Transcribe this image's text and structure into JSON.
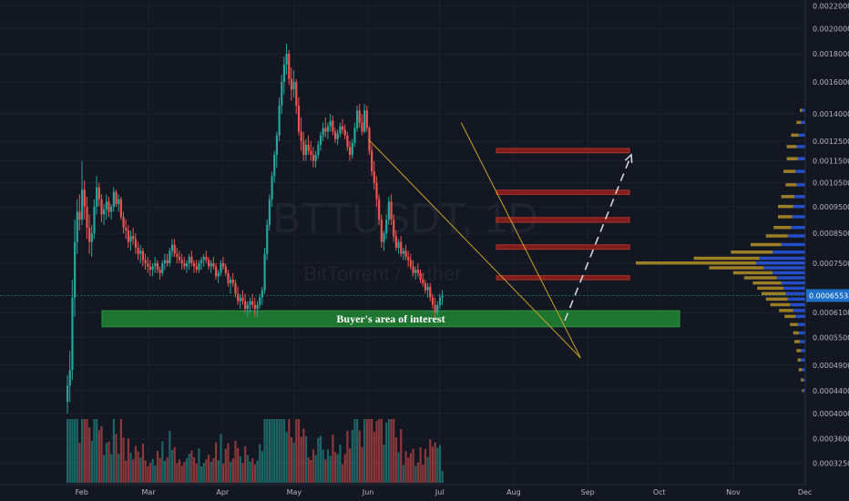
{
  "chart_data": {
    "type": "candlestick",
    "title": "",
    "watermark": {
      "symbol": "BTTUSDT, 1D",
      "name": "BitTorrent / Tether"
    },
    "xlabel": "",
    "ylabel": "",
    "x_ticks": [
      "Feb",
      "Mar",
      "Apr",
      "May",
      "Jun",
      "Jul",
      "Aug",
      "Sep",
      "Oct",
      "Nov",
      "Dec"
    ],
    "y_ticks": [
      "0.0022000",
      "0.0020000",
      "0.0018000",
      "0.0016000",
      "0.0014000",
      "0.0012500",
      "0.0011500",
      "0.0010500",
      "0.0009500",
      "0.0008500",
      "0.0007500",
      "0.0006100",
      "0.0005500",
      "0.0004900",
      "0.0004400",
      "0.0004000",
      "0.0003600",
      "0.0003250"
    ],
    "last_price": "0.0006553",
    "ylim": [
      0.00031,
      0.00222
    ],
    "y_scale": "log",
    "colors": {
      "up": "#26a69a",
      "down": "#ef5350",
      "background": "#131722",
      "zone": "#1e7d32",
      "resistance": "#8b1d1d",
      "trendline": "#c9a227",
      "projection": "#d1d4dc",
      "profile_up": "#2962ff",
      "profile_down": "#c9a227"
    },
    "support_zone": {
      "label": "Buyer's area of interest",
      "price_low": 0.000575,
      "price_high": 0.000615,
      "from": "2021-02-17",
      "to": "2021-09-25"
    },
    "resistance_zones": [
      {
        "price_low": 0.0007,
        "price_high": 0.000712,
        "from": "2021-08-01",
        "to": "2021-09-23"
      },
      {
        "price_low": 0.000795,
        "price_high": 0.00081,
        "from": "2021-08-01",
        "to": "2021-09-23"
      },
      {
        "price_low": 0.00089,
        "price_high": 0.000908,
        "from": "2021-08-01",
        "to": "2021-09-23"
      },
      {
        "price_low": 0.001,
        "price_high": 0.001018,
        "from": "2021-08-01",
        "to": "2021-09-23"
      },
      {
        "price_low": 0.00119,
        "price_high": 0.001212,
        "from": "2021-08-01",
        "to": "2021-09-23"
      }
    ],
    "trendlines": [
      {
        "from": [
          "2021-06-01",
          0.00126
        ],
        "to": [
          "2021-08-29",
          0.000505
        ]
      },
      {
        "from": [
          "2021-07-10",
          0.00135
        ],
        "to": [
          "2021-08-29",
          0.000505
        ]
      }
    ],
    "projection": {
      "from": [
        "2021-08-26",
        0.00059
      ],
      "to": [
        "2021-09-23",
        0.00118
      ]
    },
    "start_date": "2021-01-26",
    "daily_candles": [
      [
        0.00042,
        0.00047,
        0.0004,
        0.00045
      ],
      [
        0.00045,
        0.00052,
        0.00042,
        0.00048
      ],
      [
        0.00048,
        0.0007,
        0.00046,
        0.00065
      ],
      [
        0.00065,
        0.0009,
        0.0006,
        0.00082
      ],
      [
        0.00082,
        0.00098,
        0.00078,
        0.00093
      ],
      [
        0.00093,
        0.001,
        0.00086,
        0.0009
      ],
      [
        0.0009,
        0.00115,
        0.00088,
        0.00102
      ],
      [
        0.00102,
        0.00106,
        0.0009,
        0.00095
      ],
      [
        0.00095,
        0.00099,
        0.00083,
        0.00087
      ],
      [
        0.00087,
        0.00092,
        0.00078,
        0.00082
      ],
      [
        0.00082,
        0.00088,
        0.00077,
        0.00085
      ],
      [
        0.00085,
        0.00098,
        0.00083,
        0.00095
      ],
      [
        0.00095,
        0.00108,
        0.00092,
        0.00103
      ],
      [
        0.00103,
        0.00105,
        0.00095,
        0.00098
      ],
      [
        0.00098,
        0.001,
        0.00089,
        0.00092
      ],
      [
        0.00092,
        0.00096,
        0.00088,
        0.00094
      ],
      [
        0.00094,
        0.001,
        0.0009,
        0.00097
      ],
      [
        0.00097,
        0.00099,
        0.00091,
        0.00093
      ],
      [
        0.00093,
        0.00096,
        0.0009,
        0.00095
      ],
      [
        0.00095,
        0.00103,
        0.00093,
        0.00101
      ],
      [
        0.00101,
        0.00102,
        0.00095,
        0.00096
      ],
      [
        0.00096,
        0.001,
        0.00093,
        0.00098
      ],
      [
        0.00098,
        0.00099,
        0.0009,
        0.00091
      ],
      [
        0.00091,
        0.00093,
        0.00085,
        0.00087
      ],
      [
        0.00087,
        0.0009,
        0.00083,
        0.00086
      ],
      [
        0.00086,
        0.00088,
        0.0008,
        0.00082
      ],
      [
        0.00082,
        0.00086,
        0.00079,
        0.00084
      ],
      [
        0.00084,
        0.00087,
        0.00081,
        0.00083
      ],
      [
        0.00083,
        0.00085,
        0.00078,
        0.0008
      ],
      [
        0.0008,
        0.00082,
        0.00076,
        0.00078
      ],
      [
        0.00078,
        0.00081,
        0.00075,
        0.00079
      ],
      [
        0.00079,
        0.0008,
        0.00074,
        0.00076
      ],
      [
        0.00076,
        0.00078,
        0.00073,
        0.00075
      ],
      [
        0.00075,
        0.00077,
        0.00072,
        0.00074
      ],
      [
        0.00074,
        0.00076,
        0.00071,
        0.00073
      ],
      [
        0.00073,
        0.00075,
        0.00071,
        0.00074
      ],
      [
        0.00074,
        0.00077,
        0.00072,
        0.00075
      ],
      [
        0.00075,
        0.00076,
        0.00072,
        0.00073
      ],
      [
        0.00073,
        0.00074,
        0.0007,
        0.00072
      ],
      [
        0.00072,
        0.00076,
        0.00071,
        0.00075
      ],
      [
        0.00075,
        0.00078,
        0.00073,
        0.00076
      ],
      [
        0.00076,
        0.00078,
        0.00074,
        0.00075
      ],
      [
        0.00075,
        0.0008,
        0.00074,
        0.00079
      ],
      [
        0.00079,
        0.00083,
        0.00077,
        0.00081
      ],
      [
        0.00081,
        0.00083,
        0.00077,
        0.00078
      ],
      [
        0.00078,
        0.0008,
        0.00075,
        0.00077
      ],
      [
        0.00077,
        0.00079,
        0.00075,
        0.00076
      ],
      [
        0.00076,
        0.00078,
        0.00073,
        0.00075
      ],
      [
        0.00075,
        0.00077,
        0.00073,
        0.00074
      ],
      [
        0.00074,
        0.00076,
        0.00072,
        0.00075
      ],
      [
        0.00075,
        0.00078,
        0.00073,
        0.00077
      ],
      [
        0.00077,
        0.00079,
        0.00074,
        0.00075
      ],
      [
        0.00075,
        0.00076,
        0.00072,
        0.00074
      ],
      [
        0.00074,
        0.00076,
        0.00072,
        0.00073
      ],
      [
        0.00073,
        0.00076,
        0.00072,
        0.00075
      ],
      [
        0.00075,
        0.00077,
        0.00073,
        0.00076
      ],
      [
        0.00076,
        0.00078,
        0.00074,
        0.00077
      ],
      [
        0.00077,
        0.00079,
        0.00075,
        0.00076
      ],
      [
        0.00076,
        0.00077,
        0.00073,
        0.00074
      ],
      [
        0.00074,
        0.00076,
        0.00072,
        0.00075
      ],
      [
        0.00075,
        0.00077,
        0.00073,
        0.00074
      ],
      [
        0.00074,
        0.00075,
        0.0007,
        0.00071
      ],
      [
        0.00071,
        0.00073,
        0.00069,
        0.00072
      ],
      [
        0.00072,
        0.00076,
        0.00071,
        0.00075
      ],
      [
        0.00075,
        0.00077,
        0.00073,
        0.00074
      ],
      [
        0.00074,
        0.00075,
        0.00071,
        0.00072
      ],
      [
        0.00072,
        0.00073,
        0.00068,
        0.00069
      ],
      [
        0.00069,
        0.00071,
        0.00066,
        0.0007
      ],
      [
        0.0007,
        0.00072,
        0.00068,
        0.00069
      ],
      [
        0.00069,
        0.0007,
        0.00065,
        0.00066
      ],
      [
        0.00066,
        0.00068,
        0.00063,
        0.00064
      ],
      [
        0.00064,
        0.00066,
        0.00062,
        0.00065
      ],
      [
        0.00065,
        0.00067,
        0.00063,
        0.00064
      ],
      [
        0.00064,
        0.00066,
        0.00061,
        0.00062
      ],
      [
        0.00062,
        0.00064,
        0.0006,
        0.00063
      ],
      [
        0.00063,
        0.00065,
        0.00061,
        0.00064
      ],
      [
        0.00064,
        0.00066,
        0.00062,
        0.00063
      ],
      [
        0.00063,
        0.00065,
        0.0006,
        0.00062
      ],
      [
        0.00062,
        0.00064,
        0.0006,
        0.00063
      ],
      [
        0.00063,
        0.00066,
        0.00062,
        0.00065
      ],
      [
        0.00065,
        0.00068,
        0.00063,
        0.00067
      ],
      [
        0.00067,
        0.0008,
        0.00066,
        0.00078
      ],
      [
        0.00078,
        0.0009,
        0.00076,
        0.00088
      ],
      [
        0.00088,
        0.001,
        0.00086,
        0.00098
      ],
      [
        0.00098,
        0.0011,
        0.00095,
        0.00108
      ],
      [
        0.00108,
        0.0012,
        0.00105,
        0.00118
      ],
      [
        0.00118,
        0.0013,
        0.00112,
        0.00128
      ],
      [
        0.00128,
        0.0015,
        0.00125,
        0.00145
      ],
      [
        0.00145,
        0.00165,
        0.0014,
        0.0016
      ],
      [
        0.0016,
        0.00178,
        0.00152,
        0.00172
      ],
      [
        0.00172,
        0.00188,
        0.00165,
        0.0018
      ],
      [
        0.0018,
        0.00183,
        0.00158,
        0.00162
      ],
      [
        0.00162,
        0.0017,
        0.00148,
        0.00155
      ],
      [
        0.00155,
        0.00168,
        0.0015,
        0.0016
      ],
      [
        0.0016,
        0.00162,
        0.0014,
        0.00145
      ],
      [
        0.00145,
        0.0015,
        0.00128,
        0.0013
      ],
      [
        0.0013,
        0.00138,
        0.0012,
        0.00125
      ],
      [
        0.00125,
        0.0013,
        0.00115,
        0.00118
      ],
      [
        0.00118,
        0.00126,
        0.00115,
        0.00123
      ],
      [
        0.00123,
        0.00128,
        0.00118,
        0.0012
      ],
      [
        0.0012,
        0.00125,
        0.00115,
        0.00118
      ],
      [
        0.00118,
        0.00122,
        0.00112,
        0.00115
      ],
      [
        0.00115,
        0.0012,
        0.00112,
        0.00118
      ],
      [
        0.00118,
        0.00125,
        0.00116,
        0.00123
      ],
      [
        0.00123,
        0.0013,
        0.0012,
        0.00128
      ],
      [
        0.00128,
        0.00135,
        0.00125,
        0.00132
      ],
      [
        0.00132,
        0.00138,
        0.00127,
        0.0013
      ],
      [
        0.0013,
        0.00135,
        0.00126,
        0.00133
      ],
      [
        0.00133,
        0.0014,
        0.0013,
        0.00136
      ],
      [
        0.00136,
        0.00139,
        0.00128,
        0.0013
      ],
      [
        0.0013,
        0.00132,
        0.00124,
        0.00126
      ],
      [
        0.00126,
        0.00131,
        0.00123,
        0.00129
      ],
      [
        0.00129,
        0.00135,
        0.00127,
        0.00133
      ],
      [
        0.00133,
        0.00137,
        0.00129,
        0.00131
      ],
      [
        0.00131,
        0.00134,
        0.00126,
        0.00128
      ],
      [
        0.00128,
        0.0013,
        0.0012,
        0.00122
      ],
      [
        0.00122,
        0.00125,
        0.00115,
        0.00118
      ],
      [
        0.00118,
        0.00126,
        0.00116,
        0.00124
      ],
      [
        0.00124,
        0.00135,
        0.00122,
        0.00132
      ],
      [
        0.00132,
        0.00145,
        0.0013,
        0.00142
      ],
      [
        0.00142,
        0.00146,
        0.00132,
        0.00135
      ],
      [
        0.00135,
        0.0014,
        0.00128,
        0.0013
      ],
      [
        0.0013,
        0.00146,
        0.00129,
        0.00142
      ],
      [
        0.00142,
        0.00145,
        0.0013,
        0.00132
      ],
      [
        0.00132,
        0.00133,
        0.00118,
        0.0012
      ],
      [
        0.0012,
        0.00123,
        0.00108,
        0.0011
      ],
      [
        0.0011,
        0.00115,
        0.00102,
        0.00105
      ],
      [
        0.00105,
        0.00108,
        0.00095,
        0.00098
      ],
      [
        0.00098,
        0.001,
        0.00088,
        0.0009
      ],
      [
        0.0009,
        0.00092,
        0.0008,
        0.00082
      ],
      [
        0.00082,
        0.00086,
        0.00079,
        0.00085
      ],
      [
        0.00085,
        0.00092,
        0.00083,
        0.0009
      ],
      [
        0.0009,
        0.00099,
        0.00088,
        0.00097
      ],
      [
        0.00097,
        0.001,
        0.00088,
        0.0009
      ],
      [
        0.0009,
        0.00092,
        0.00082,
        0.00084
      ],
      [
        0.00084,
        0.00086,
        0.00079,
        0.0008
      ],
      [
        0.0008,
        0.00083,
        0.00078,
        0.00082
      ],
      [
        0.00082,
        0.00084,
        0.00077,
        0.00078
      ],
      [
        0.00078,
        0.0008,
        0.00076,
        0.00079
      ],
      [
        0.00079,
        0.00081,
        0.00076,
        0.00077
      ],
      [
        0.00077,
        0.00079,
        0.00074,
        0.00076
      ],
      [
        0.00076,
        0.00078,
        0.00073,
        0.00074
      ],
      [
        0.00074,
        0.00076,
        0.00071,
        0.00072
      ],
      [
        0.00072,
        0.00074,
        0.0007,
        0.00073
      ],
      [
        0.00073,
        0.00075,
        0.00071,
        0.00072
      ],
      [
        0.00072,
        0.00073,
        0.00069,
        0.0007
      ],
      [
        0.0007,
        0.00072,
        0.00068,
        0.00069
      ],
      [
        0.00069,
        0.0007,
        0.00066,
        0.00067
      ],
      [
        0.00067,
        0.00069,
        0.00065,
        0.00068
      ],
      [
        0.00068,
        0.00069,
        0.00064,
        0.00065
      ],
      [
        0.00065,
        0.00066,
        0.00062,
        0.00063
      ],
      [
        0.00063,
        0.00065,
        0.0006,
        0.00061
      ],
      [
        0.00061,
        0.00064,
        0.0006,
        0.00063
      ],
      [
        0.00063,
        0.00066,
        0.00062,
        0.00065
      ],
      [
        0.00065,
        0.00067,
        0.00063,
        0.000655
      ]
    ],
    "volume_profile": [
      {
        "price": 0.00142,
        "up": 3,
        "down": 2
      },
      {
        "price": 0.00135,
        "up": 4,
        "down": 4
      },
      {
        "price": 0.00128,
        "up": 6,
        "down": 7
      },
      {
        "price": 0.00122,
        "up": 8,
        "down": 9
      },
      {
        "price": 0.00116,
        "up": 7,
        "down": 10
      },
      {
        "price": 0.0011,
        "up": 9,
        "down": 11
      },
      {
        "price": 0.00104,
        "up": 8,
        "down": 10
      },
      {
        "price": 0.00099,
        "up": 10,
        "down": 12
      },
      {
        "price": 0.00095,
        "up": 11,
        "down": 14
      },
      {
        "price": 0.00091,
        "up": 12,
        "down": 13
      },
      {
        "price": 0.00087,
        "up": 13,
        "down": 16
      },
      {
        "price": 0.00084,
        "up": 16,
        "down": 20
      },
      {
        "price": 0.00081,
        "up": 22,
        "down": 28
      },
      {
        "price": 0.000785,
        "up": 30,
        "down": 38
      },
      {
        "price": 0.000765,
        "up": 42,
        "down": 60
      },
      {
        "price": 0.00075,
        "up": 45,
        "down": 110
      },
      {
        "price": 0.000735,
        "up": 38,
        "down": 50
      },
      {
        "price": 0.00072,
        "up": 30,
        "down": 36
      },
      {
        "price": 0.000705,
        "up": 26,
        "down": 30
      },
      {
        "price": 0.00069,
        "up": 22,
        "down": 26
      },
      {
        "price": 0.000675,
        "up": 20,
        "down": 24
      },
      {
        "price": 0.00066,
        "up": 18,
        "down": 22
      },
      {
        "price": 0.000645,
        "up": 16,
        "down": 20
      },
      {
        "price": 0.00063,
        "up": 14,
        "down": 18
      },
      {
        "price": 0.000615,
        "up": 11,
        "down": 13
      },
      {
        "price": 0.0006,
        "up": 9,
        "down": 10
      },
      {
        "price": 0.00058,
        "up": 7,
        "down": 7
      },
      {
        "price": 0.00056,
        "up": 6,
        "down": 5
      },
      {
        "price": 0.00054,
        "up": 5,
        "down": 5
      },
      {
        "price": 0.00052,
        "up": 4,
        "down": 4
      },
      {
        "price": 0.0005,
        "up": 4,
        "down": 3
      },
      {
        "price": 0.00048,
        "up": 3,
        "down": 3
      },
      {
        "price": 0.00046,
        "up": 2,
        "down": 2
      },
      {
        "price": 0.00044,
        "up": 2,
        "down": 1
      }
    ]
  }
}
